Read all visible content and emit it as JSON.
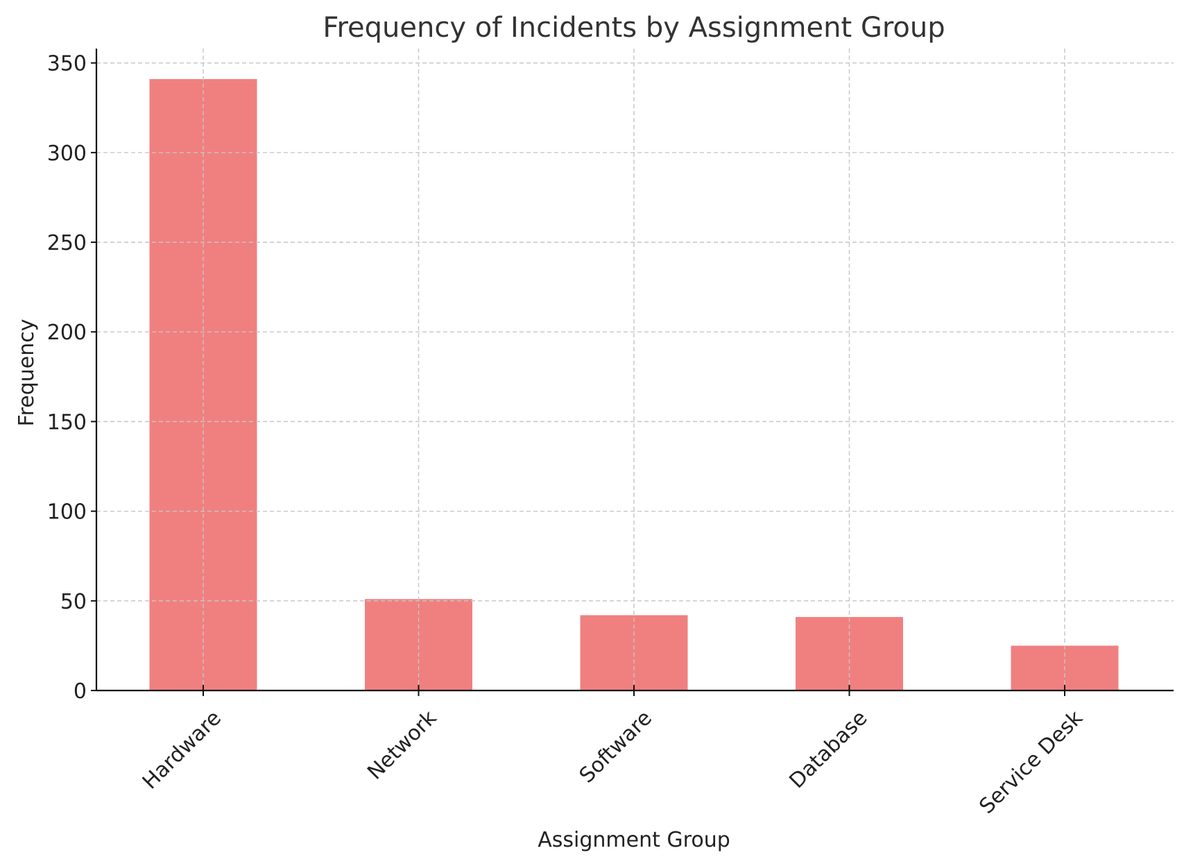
{
  "chart_data": {
    "type": "bar",
    "title": "Frequency of Incidents by Assignment Group",
    "xlabel": "Assignment Group",
    "ylabel": "Frequency",
    "categories": [
      "Hardware",
      "Network",
      "Software",
      "Database",
      "Service Desk"
    ],
    "values": [
      341,
      51,
      42,
      41,
      25
    ],
    "ylim": [
      0,
      358
    ],
    "yticks": [
      0,
      50,
      100,
      150,
      200,
      250,
      300,
      350
    ],
    "grid": true,
    "x_tick_rotation_deg": 45,
    "bar_color": "#f08080"
  }
}
